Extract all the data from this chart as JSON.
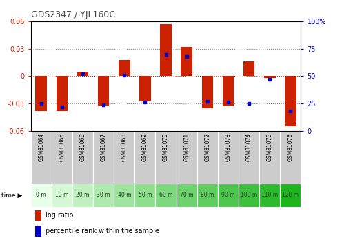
{
  "title": "GDS2347 / YJL160C",
  "samples": [
    "GSM81064",
    "GSM81065",
    "GSM81066",
    "GSM81067",
    "GSM81068",
    "GSM81069",
    "GSM81070",
    "GSM81071",
    "GSM81072",
    "GSM81073",
    "GSM81074",
    "GSM81075",
    "GSM81076"
  ],
  "time_labels": [
    "0 m",
    "10 m",
    "20 m",
    "30 m",
    "40 m",
    "50 m",
    "60 m",
    "70 m",
    "80 m",
    "90 m",
    "100 m",
    "110 m",
    "120 m"
  ],
  "log_ratio": [
    -0.038,
    -0.038,
    0.005,
    -0.032,
    0.018,
    -0.028,
    0.057,
    0.032,
    -0.035,
    -0.033,
    0.016,
    -0.002,
    -0.055
  ],
  "percentile": [
    25,
    22,
    52,
    24,
    51,
    26,
    70,
    68,
    27,
    26,
    25,
    47,
    18
  ],
  "ylim": [
    -0.06,
    0.06
  ],
  "yticks_left": [
    -0.06,
    -0.03,
    0,
    0.03,
    0.06
  ],
  "yticks_right": [
    0,
    25,
    50,
    75,
    100
  ],
  "bar_color": "#cc2200",
  "dot_color": "#0000cc",
  "bg_color_sample": "#cccccc",
  "title_color": "#444444",
  "left_axis_color": "#cc2200",
  "right_axis_color": "#0000cc",
  "bar_width": 0.55,
  "time_colors": [
    "#e8ffe8",
    "#d4f8d4",
    "#c0f0c0",
    "#aeeaae",
    "#9ee49e",
    "#8ede8e",
    "#7ed87e",
    "#6ed26e",
    "#5ecc5e",
    "#4ec64e",
    "#3ec03e",
    "#2eba2e",
    "#1eb41e"
  ]
}
